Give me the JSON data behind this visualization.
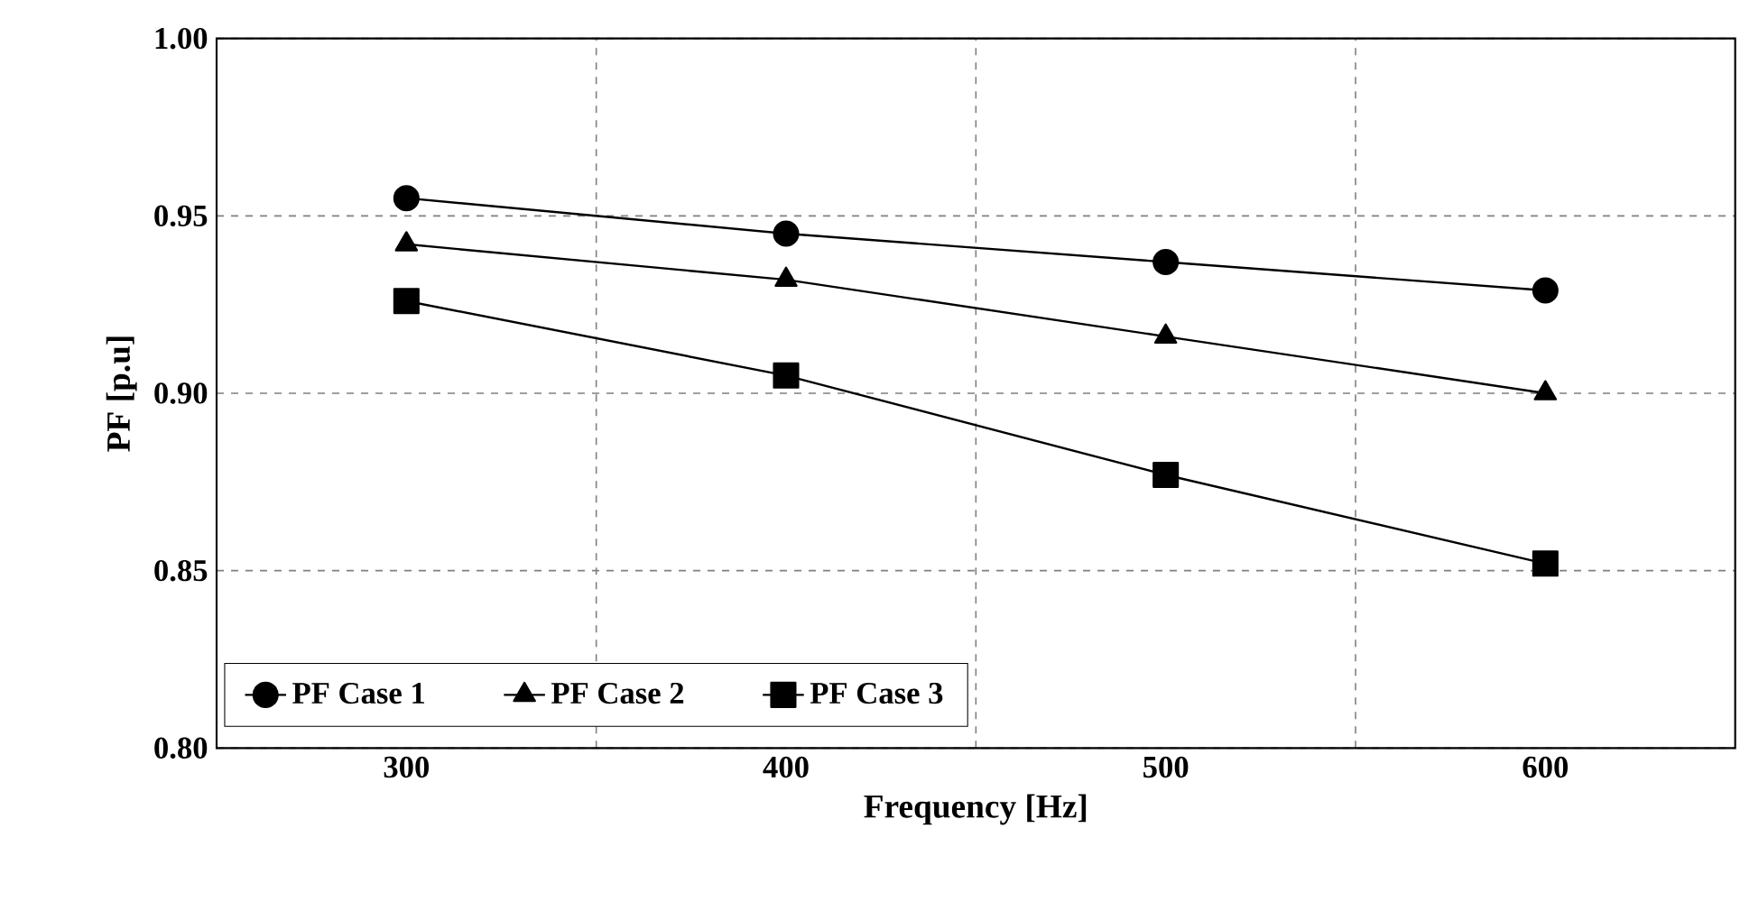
{
  "chart_data": {
    "type": "line",
    "xlabel": "Frequency [Hz]",
    "ylabel": "PF [p.u]",
    "categories": [
      "300",
      "400",
      "500",
      "600"
    ],
    "series": [
      {
        "name": "PF Case 1",
        "color": "#000000",
        "marker": "circle",
        "values": [
          0.955,
          0.945,
          0.937,
          0.929
        ]
      },
      {
        "name": "PF Case 2",
        "color": "#000000",
        "marker": "triangle",
        "values": [
          0.942,
          0.932,
          0.916,
          0.9
        ]
      },
      {
        "name": "PF Case 3",
        "color": "#000000",
        "marker": "square",
        "values": [
          0.926,
          0.905,
          0.877,
          0.852
        ]
      }
    ],
    "ylim": [
      0.8,
      1.0
    ],
    "yticks": [
      {
        "value": 0.8,
        "label": "0.80"
      },
      {
        "value": 0.85,
        "label": "0.85"
      },
      {
        "value": 0.9,
        "label": "0.90"
      },
      {
        "value": 0.95,
        "label": "0.95"
      },
      {
        "value": 1.0,
        "label": "1.00"
      }
    ],
    "grid": true,
    "legend": "bottom left",
    "line_style": "solid"
  }
}
